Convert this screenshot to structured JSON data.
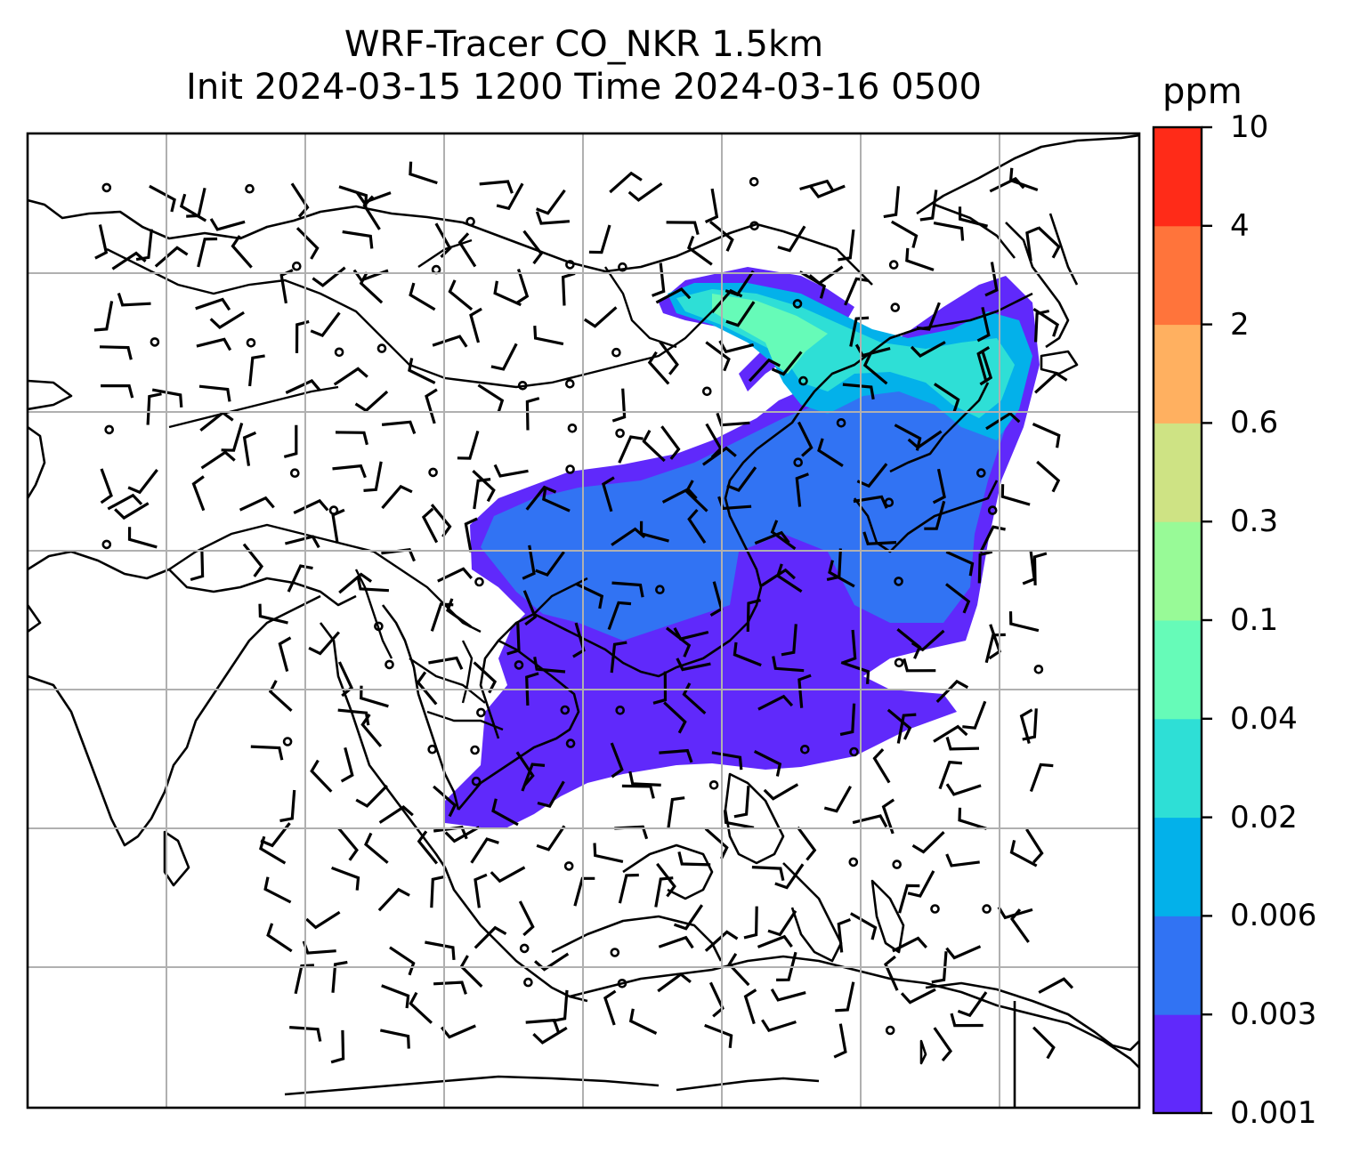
{
  "title": {
    "line1": "WRF-Tracer CO_NKR 1.5km",
    "line2": "Init 2024-03-15 1200 Time 2024-03-16 0500"
  },
  "colorbar": {
    "unit": "ppm",
    "ticks": [
      "0.001",
      "0.003",
      "0.006",
      "0.02",
      "0.04",
      "0.1",
      "0.3",
      "0.6",
      "2",
      "4",
      "10"
    ],
    "colors": [
      "#6029fb",
      "#3173f3",
      "#03b1ea",
      "#2edfd6",
      "#66fbb8",
      "#98fa97",
      "#cee384",
      "#ffb060",
      "#ff743b",
      "#ff2b18"
    ]
  },
  "map": {
    "gridlines": true,
    "overlay": "wind barbs",
    "plume_levels": [
      "0.001-0.003",
      "0.003-0.006",
      "0.006-0.02",
      "0.02-0.04",
      "0.04-0.1"
    ]
  }
}
